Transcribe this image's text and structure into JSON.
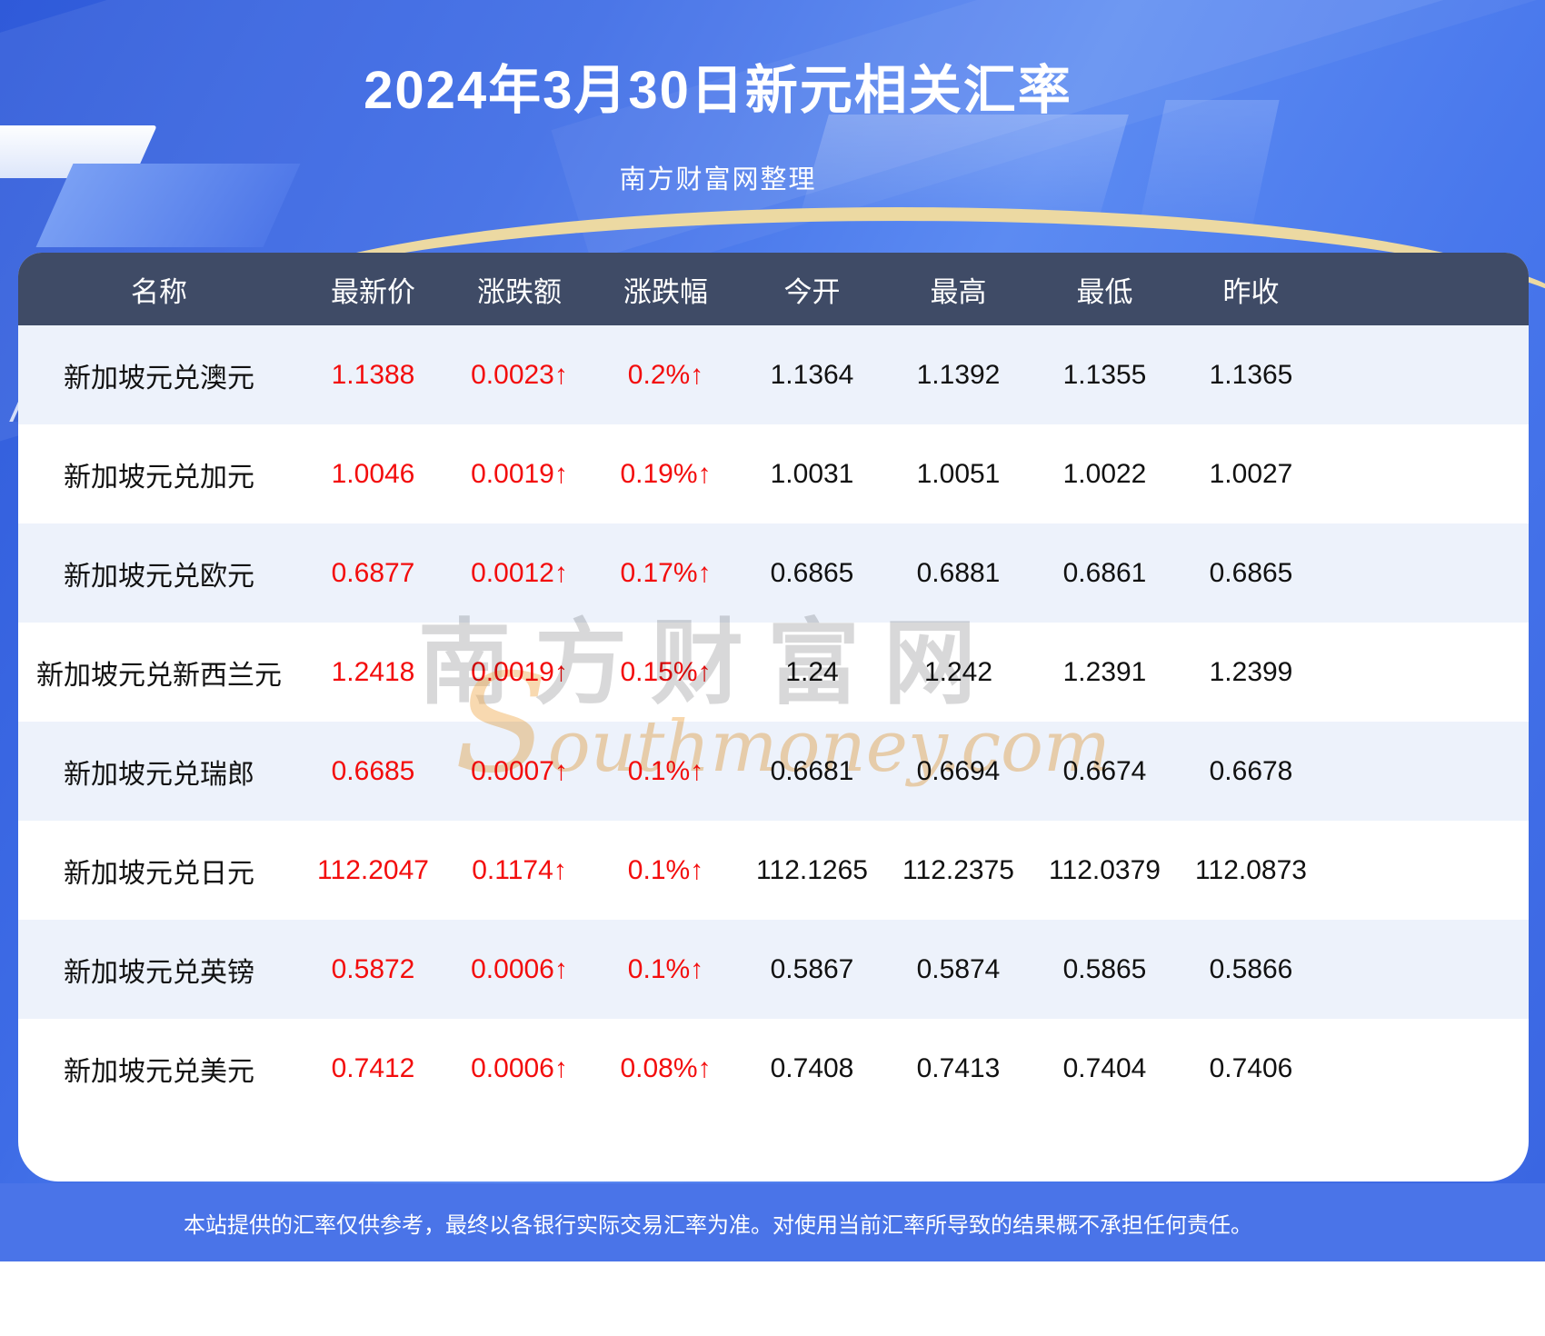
{
  "chart_data": {
    "type": "table",
    "title": "2024年3月30日新元相关汇率",
    "subtitle": "南方财富网整理",
    "columns": [
      "名称",
      "最新价",
      "涨跌额",
      "涨跌幅",
      "今开",
      "最高",
      "最低",
      "昨收"
    ],
    "rows": [
      {
        "name": "新加坡元兑澳元",
        "last": "1.1388",
        "change": "0.0023↑",
        "pct": "0.2%↑",
        "open": "1.1364",
        "high": "1.1392",
        "low": "1.1355",
        "prev": "1.1365"
      },
      {
        "name": "新加坡元兑加元",
        "last": "1.0046",
        "change": "0.0019↑",
        "pct": "0.19%↑",
        "open": "1.0031",
        "high": "1.0051",
        "low": "1.0022",
        "prev": "1.0027"
      },
      {
        "name": "新加坡元兑欧元",
        "last": "0.6877",
        "change": "0.0012↑",
        "pct": "0.17%↑",
        "open": "0.6865",
        "high": "0.6881",
        "low": "0.6861",
        "prev": "0.6865"
      },
      {
        "name": "新加坡元兑新西兰元",
        "last": "1.2418",
        "change": "0.0019↑",
        "pct": "0.15%↑",
        "open": "1.24",
        "high": "1.242",
        "low": "1.2391",
        "prev": "1.2399"
      },
      {
        "name": "新加坡元兑瑞郎",
        "last": "0.6685",
        "change": "0.0007↑",
        "pct": "0.1%↑",
        "open": "0.6681",
        "high": "0.6694",
        "low": "0.6674",
        "prev": "0.6678"
      },
      {
        "name": "新加坡元兑日元",
        "last": "112.2047",
        "change": "0.1174↑",
        "pct": "0.1%↑",
        "open": "112.1265",
        "high": "112.2375",
        "low": "112.0379",
        "prev": "112.0873"
      },
      {
        "name": "新加坡元兑英镑",
        "last": "0.5872",
        "change": "0.0006↑",
        "pct": "0.1%↑",
        "open": "0.5867",
        "high": "0.5874",
        "low": "0.5865",
        "prev": "0.5866"
      },
      {
        "name": "新加坡元兑美元",
        "last": "0.7412",
        "change": "0.0006↑",
        "pct": "0.08%↑",
        "open": "0.7408",
        "high": "0.7413",
        "low": "0.7404",
        "prev": "0.7406"
      }
    ],
    "layout": {
      "legend": "none",
      "grid": "off",
      "up_color": "#f30d0d",
      "header_bg": "#3f4b66",
      "row_alt_bg": "#edf2fb"
    }
  },
  "page": {
    "disclaimer": "本站提供的汇率仅供参考，最终以各银行实际交易汇率为准。对使用当前汇率所导致的结果概不承担任何责任。",
    "watermark": {
      "cn": "南方财富网",
      "en_initial": "S",
      "en_rest": "outhmoney.com"
    }
  },
  "colors": {
    "banner_blue": "#3e6ce6",
    "footer_bg": "#4a74e8",
    "up_red": "#f30d0d",
    "header_bg": "#3f4b66",
    "row_alt_bg": "#edf2fb",
    "gold_arc": "#ecd9a2"
  }
}
